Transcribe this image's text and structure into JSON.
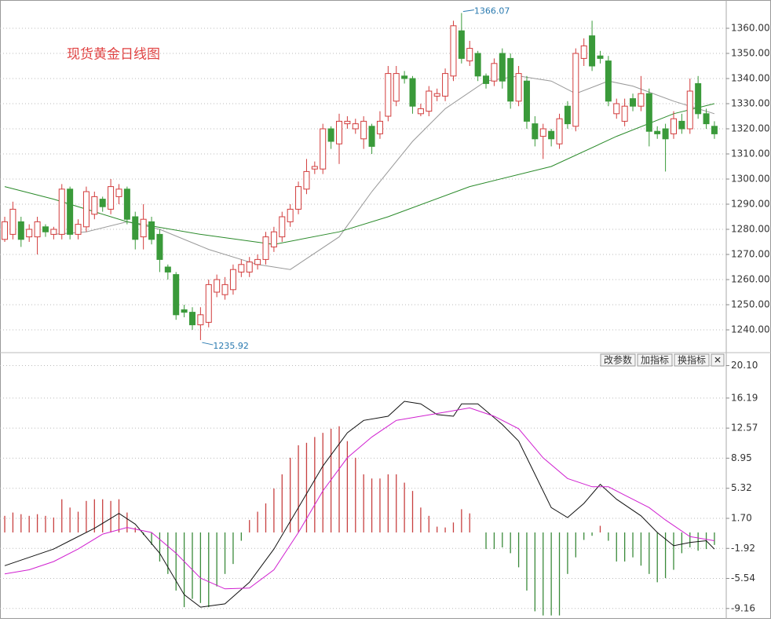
{
  "chart_data": [
    {
      "type": "candlestick",
      "title": "现货黄金日线图",
      "up_color": "#d23c3c",
      "down_color": "#3a9a3a",
      "grid": true,
      "xlim": [
        -0.58,
        88.45
      ],
      "ylim": [
        1231.25,
        1371.25
      ],
      "yticks": [
        {
          "value": 1240,
          "label": "1240.00"
        },
        {
          "value": 1250,
          "label": "1250.00"
        },
        {
          "value": 1260,
          "label": "1260.00"
        },
        {
          "value": 1270,
          "label": "1270.00"
        },
        {
          "value": 1280,
          "label": "1280.00"
        },
        {
          "value": 1290,
          "label": "1290.00"
        },
        {
          "value": 1300,
          "label": "1300.00"
        },
        {
          "value": 1310,
          "label": "1310.00"
        },
        {
          "value": 1320,
          "label": "1320.00"
        },
        {
          "value": 1330,
          "label": "1330.00"
        },
        {
          "value": 1340,
          "label": "1340.00"
        },
        {
          "value": 1350,
          "label": "1350.00"
        },
        {
          "value": 1360,
          "label": "1360.00"
        }
      ],
      "open": [
        1276,
        1278,
        1283,
        1277,
        1277,
        1281,
        1278,
        1278,
        1296,
        1278,
        1281,
        1286,
        1292,
        1288,
        1293,
        1296,
        1285,
        1277,
        1283,
        1278,
        1265,
        1262,
        1248,
        1247,
        1242,
        1243,
        1255,
        1254,
        1256,
        1263,
        1263,
        1266,
        1268,
        1273,
        1277,
        1283,
        1288,
        1296,
        1304,
        1304,
        1320,
        1314,
        1322,
        1320,
        1316,
        1321,
        1318,
        1325,
        1331,
        1341,
        1340,
        1326,
        1327,
        1333,
        1333,
        1341,
        1359,
        1347,
        1350,
        1341,
        1339,
        1350,
        1348,
        1331,
        1339,
        1322,
        1317,
        1319,
        1314,
        1329,
        1321,
        1348,
        1357,
        1349,
        1347,
        1326,
        1323,
        1332,
        1329,
        1334,
        1319,
        1320,
        1318,
        1323,
        1320,
        1338,
        1326,
        1321
      ],
      "high": [
        1285,
        1291,
        1285,
        1282,
        1285,
        1282,
        1281,
        1298,
        1297,
        1284,
        1297,
        1295,
        1293,
        1300,
        1298,
        1297,
        1287,
        1290,
        1285,
        1280,
        1266,
        1263,
        1250,
        1249,
        1249,
        1260,
        1262,
        1261,
        1266,
        1268,
        1269,
        1270,
        1279,
        1281,
        1287,
        1290,
        1299,
        1308,
        1307,
        1322,
        1321,
        1326,
        1325,
        1324,
        1325,
        1322,
        1327,
        1345,
        1345,
        1343,
        1341,
        1330,
        1337,
        1336,
        1344,
        1363,
        1366.07,
        1355,
        1351,
        1342,
        1348,
        1352,
        1350,
        1345,
        1341,
        1325,
        1322,
        1320,
        1326,
        1331,
        1352,
        1356,
        1363,
        1351,
        1349,
        1332,
        1332,
        1334,
        1341,
        1336,
        1321,
        1322,
        1327,
        1326,
        1340,
        1341,
        1328,
        1323
      ],
      "low": [
        1275,
        1276,
        1273,
        1275,
        1270,
        1277,
        1276,
        1276,
        1276,
        1276,
        1279,
        1284,
        1287,
        1286,
        1290,
        1282,
        1272,
        1272,
        1274,
        1263,
        1260,
        1244,
        1245,
        1240,
        1235.92,
        1241,
        1253,
        1252,
        1254,
        1261,
        1261,
        1264,
        1266,
        1271,
        1275,
        1281,
        1286,
        1294,
        1302,
        1302,
        1312,
        1306,
        1320,
        1318,
        1312,
        1310,
        1316,
        1323,
        1329,
        1338,
        1326,
        1325,
        1325,
        1331,
        1331,
        1339,
        1346,
        1345,
        1339,
        1336,
        1337,
        1336,
        1328,
        1329,
        1320,
        1313,
        1308,
        1313,
        1312,
        1320,
        1319,
        1345,
        1343,
        1346,
        1329,
        1324,
        1321,
        1327,
        1327,
        1313,
        1316,
        1303,
        1316,
        1318,
        1318,
        1324,
        1320,
        1316
      ],
      "close": [
        1283,
        1288,
        1276,
        1280,
        1283,
        1279,
        1280,
        1296,
        1278,
        1282,
        1295,
        1293,
        1289,
        1297,
        1296,
        1284,
        1276,
        1284,
        1276,
        1268,
        1263,
        1246,
        1247,
        1242,
        1246,
        1258,
        1260,
        1258,
        1264,
        1266,
        1267,
        1268,
        1277,
        1279,
        1285,
        1288,
        1297,
        1303,
        1305,
        1320,
        1315,
        1323,
        1323,
        1322,
        1323,
        1313,
        1323,
        1342,
        1342,
        1340,
        1329,
        1328,
        1335,
        1334,
        1342,
        1361,
        1348,
        1352,
        1341,
        1338,
        1346,
        1339,
        1331,
        1342,
        1323,
        1316,
        1320,
        1316,
        1324,
        1322,
        1350,
        1353,
        1345,
        1348,
        1331,
        1330,
        1329,
        1329,
        1334,
        1319,
        1318,
        1316,
        1324,
        1320,
        1335,
        1326,
        1322,
        1318
      ],
      "lines": [
        {
          "color": "#999999",
          "x": [
            6,
            10,
            15,
            19,
            25,
            31,
            35,
            41,
            45,
            50,
            54,
            59,
            63,
            67,
            70,
            74,
            77,
            82,
            87
          ],
          "values": [
            1278,
            1279,
            1283,
            1280,
            1272,
            1266,
            1264,
            1277,
            1295,
            1315,
            1328,
            1339,
            1341,
            1339,
            1334,
            1339,
            1337,
            1331,
            1326
          ]
        },
        {
          "color": "#2a8a2a",
          "x": [
            0,
            6,
            15,
            24,
            33,
            41,
            47,
            57,
            67,
            75,
            82,
            87
          ],
          "values": [
            1297,
            1292,
            1283,
            1278,
            1274,
            1279,
            1285,
            1297,
            1305,
            1317,
            1326,
            1330
          ]
        }
      ],
      "annotations": [
        {
          "index": 56,
          "field": "high"
        },
        {
          "index": 24,
          "field": "low"
        }
      ],
      "annotation_color": "#2a7ab0"
    },
    {
      "type": "macd",
      "buttons": [
        "改参数",
        "加指标",
        "换指标",
        "✕"
      ],
      "up_color": "#c84040",
      "down_color": "#3a8a3a",
      "grid": true,
      "xlim": [
        -0.58,
        88.45
      ],
      "ylim": [
        -10.41,
        21.57
      ],
      "yticks": [
        {
          "value": -9.16,
          "label": "-9.16"
        },
        {
          "value": -5.54,
          "label": "-5.54"
        },
        {
          "value": -1.92,
          "label": "-1.92"
        },
        {
          "value": 1.7,
          "label": "1.70"
        },
        {
          "value": 5.32,
          "label": "5.32"
        },
        {
          "value": 8.95,
          "label": "8.95"
        },
        {
          "value": 12.57,
          "label": "12.57"
        },
        {
          "value": 16.19,
          "label": "16.19"
        },
        {
          "value": 20.1,
          "label": "20.10"
        }
      ],
      "values": [
        2.0,
        2.4,
        2.2,
        2.0,
        2.2,
        2.0,
        1.8,
        4.0,
        3.0,
        2.5,
        3.8,
        4.0,
        4.0,
        3.8,
        4.0,
        2.4,
        0.6,
        -0.3,
        -1.5,
        -3.5,
        -5.0,
        -7.0,
        -9.0,
        -8.0,
        -8.5,
        -9.0,
        -6.5,
        -5.0,
        -3.8,
        -1.0,
        1.5,
        2.5,
        3.5,
        5.3,
        7.0,
        9.0,
        10.5,
        10.8,
        11.5,
        12.0,
        12.5,
        12.8,
        11.0,
        9.0,
        7.0,
        6.5,
        6.5,
        7.0,
        7.0,
        6.0,
        5.0,
        3.0,
        2.0,
        0.7,
        0.6,
        1.2,
        2.8,
        2.3,
        null,
        -2.0,
        -2.0,
        -1.8,
        -2.5,
        -4.2,
        -7.0,
        -9.5,
        -10.0,
        -10.0,
        -10.0,
        -5.0,
        -3.0,
        -0.9,
        -0.4,
        0.8,
        -1.0,
        -3.5,
        -3.5,
        -3.0,
        -4.0,
        -5.0,
        -6.0,
        -5.5,
        -4.5,
        -2.5,
        -1.8,
        -2.2,
        -2.0,
        -1.5
      ],
      "lines": [
        {
          "color": "#111111",
          "x": [
            0,
            3,
            6,
            8,
            11,
            14,
            16,
            19,
            22,
            24,
            27,
            30,
            33,
            36,
            39,
            42,
            44,
            47,
            49,
            51,
            53,
            55,
            56,
            58,
            61,
            63,
            65,
            67,
            69,
            71,
            73,
            75,
            78,
            80,
            82,
            84,
            86,
            87
          ],
          "values": [
            -4.0,
            -3.0,
            -2.0,
            -1.0,
            0.5,
            2.3,
            1.0,
            -2.5,
            -7.5,
            -9.0,
            -8.6,
            -6.0,
            -2.0,
            3.0,
            8.0,
            12.0,
            13.5,
            14.0,
            15.8,
            15.5,
            14.2,
            14.0,
            15.5,
            15.5,
            13.0,
            11.0,
            7.0,
            3.0,
            1.8,
            3.5,
            5.8,
            4.0,
            2.0,
            0.0,
            -1.6,
            -1.2,
            -1.0,
            -2.0
          ]
        },
        {
          "color": "#d020d0",
          "x": [
            0,
            3,
            6,
            9,
            12,
            15,
            18,
            21,
            24,
            27,
            30,
            33,
            36,
            39,
            42,
            45,
            48,
            51,
            54,
            57,
            60,
            63,
            66,
            69,
            72,
            74,
            76,
            79,
            81,
            84,
            87
          ],
          "values": [
            -5.0,
            -4.5,
            -3.5,
            -2.0,
            -0.2,
            0.6,
            0.0,
            -2.5,
            -5.5,
            -6.8,
            -6.7,
            -4.5,
            0.0,
            5.0,
            9.0,
            11.5,
            13.5,
            14.0,
            14.5,
            15.0,
            14.0,
            12.5,
            9.0,
            6.5,
            5.5,
            5.5,
            4.5,
            3.0,
            1.5,
            -0.5,
            -1.0
          ]
        }
      ]
    }
  ]
}
